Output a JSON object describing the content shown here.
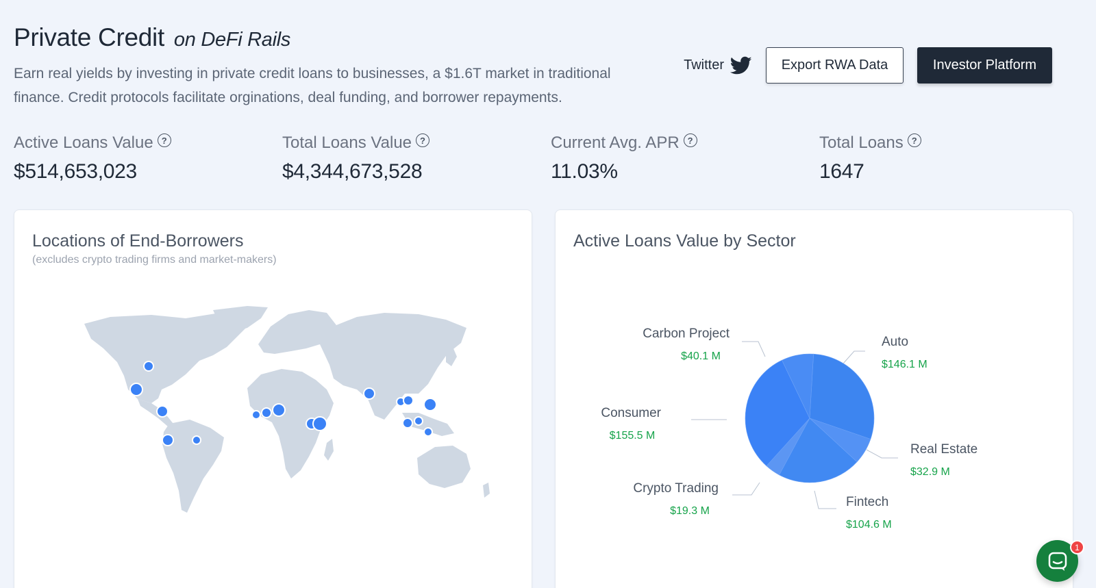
{
  "header": {
    "title": "Private Credit",
    "title_suffix": "on DeFi Rails",
    "description": "Earn real yields by investing in private credit loans to businesses, a $1.6T market in traditional finance. Credit protocols facilitate orginations, deal funding, and borrower repayments."
  },
  "actions": {
    "twitter_label": "Twitter",
    "export_label": "Export RWA Data",
    "investor_label": "Investor Platform"
  },
  "stats": [
    {
      "label": "Active Loans Value",
      "value": "$514,653,023"
    },
    {
      "label": "Total Loans Value",
      "value": "$4,344,673,528"
    },
    {
      "label": "Current Avg. APR",
      "value": "11.03%"
    },
    {
      "label": "Total Loans",
      "value": "1647"
    }
  ],
  "help_glyph": "?",
  "map_card": {
    "title": "Locations of End-Borrowers",
    "subtitle": "(excludes crypto trading firms and market-makers)"
  },
  "sector_card": {
    "title": "Active Loans Value by Sector"
  },
  "chart_data": {
    "type": "pie",
    "title": "Active Loans Value by Sector",
    "unit": "$M",
    "labeled_sectors": [
      {
        "name": "Auto",
        "value_label": "$146.1 M",
        "value": 146.1
      },
      {
        "name": "Real Estate",
        "value_label": "$32.9 M",
        "value": 32.9
      },
      {
        "name": "Fintech",
        "value_label": "$104.6 M",
        "value": 104.6
      },
      {
        "name": "Crypto Trading",
        "value_label": "$19.3 M",
        "value": 19.3
      },
      {
        "name": "Consumer",
        "value_label": "$155.5 M",
        "value": 155.5
      },
      {
        "name": "Carbon Project",
        "value_label": "$40.1 M",
        "value": 40.1
      }
    ]
  },
  "colors": {
    "accent": "#3b82f6",
    "dark": "#1f2937",
    "positive": "#16a34a",
    "chat": "#15803d",
    "badge": "#ef4444"
  },
  "chat": {
    "icon": "chat-bubble-icon",
    "badge_count": "1"
  }
}
